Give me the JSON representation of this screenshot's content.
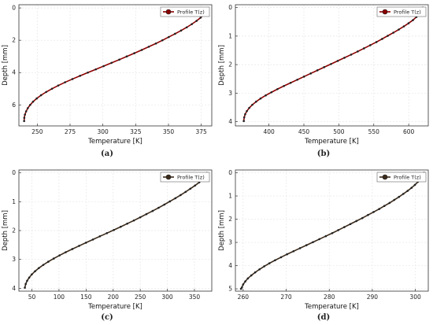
{
  "chart_data": [
    {
      "type": "line",
      "caption": "(a)",
      "xlabel": "Temperature [K]",
      "ylabel": "Depth [mm]",
      "xticks": [
        250,
        275,
        300,
        325,
        350,
        375
      ],
      "yticks": [
        0,
        2,
        4,
        6
      ],
      "xlim": [
        236,
        383
      ],
      "ylim": [
        -0.2,
        7.3
      ],
      "y_inverted": true,
      "grid": true,
      "legend_position": "top-right",
      "series": [
        {
          "name": "Profile T(z)",
          "color": "#8b0000",
          "x": [
            380.0,
            378.6,
            377.0,
            374.5,
            371.4,
            367.8,
            363.9,
            359.6,
            355.0,
            350.2,
            345.4,
            340.4,
            335.0,
            329.6,
            324.0,
            318.2,
            312.5,
            306.6,
            300.6,
            294.6,
            288.5,
            282.6,
            276.8,
            271.2,
            266.0,
            261.2,
            256.8,
            252.9,
            249.6,
            246.8,
            244.6,
            242.8,
            241.5,
            240.6,
            240.1,
            240.0
          ],
          "y": [
            0.0,
            0.2,
            0.4,
            0.6,
            0.8,
            1.0,
            1.2,
            1.4,
            1.6,
            1.8,
            2.0,
            2.2,
            2.4,
            2.6,
            2.8,
            3.0,
            3.2,
            3.4,
            3.6,
            3.8,
            4.0,
            4.2,
            4.4,
            4.6,
            4.8,
            5.0,
            5.2,
            5.4,
            5.6,
            5.8,
            6.0,
            6.2,
            6.4,
            6.6,
            6.8,
            7.0
          ]
        }
      ]
    },
    {
      "type": "line",
      "caption": "(b)",
      "xlabel": "Temperature [K]",
      "ylabel": "Depth [mm]",
      "xticks": [
        400,
        450,
        500,
        550,
        600
      ],
      "yticks": [
        0,
        1,
        2,
        3,
        4
      ],
      "xlim": [
        352,
        628
      ],
      "ylim": [
        -0.1,
        4.15
      ],
      "y_inverted": true,
      "grid": true,
      "legend_position": "top-right",
      "series": [
        {
          "name": "Profile T(z)",
          "color": "#8b0000",
          "x": [
            620.0,
            618.2,
            615.6,
            611.0,
            606.0,
            599.8,
            593.0,
            585.8,
            578.0,
            570.0,
            562.0,
            553.8,
            545.0,
            536.0,
            527.0,
            517.6,
            508.0,
            498.4,
            488.8,
            479.0,
            469.4,
            459.8,
            450.2,
            440.6,
            431.0,
            421.4,
            412.2,
            403.6,
            395.4,
            388.0,
            381.6,
            376.2,
            371.8,
            368.4,
            366.0,
            364.6,
            364.0
          ],
          "y": [
            0.0,
            0.11,
            0.22,
            0.33,
            0.44,
            0.55,
            0.66,
            0.77,
            0.88,
            0.99,
            1.1,
            1.21,
            1.32,
            1.43,
            1.54,
            1.65,
            1.76,
            1.87,
            1.98,
            2.09,
            2.2,
            2.31,
            2.42,
            2.53,
            2.64,
            2.75,
            2.86,
            2.97,
            3.08,
            3.19,
            3.3,
            3.41,
            3.52,
            3.63,
            3.74,
            3.85,
            3.98
          ]
        }
      ]
    },
    {
      "type": "line",
      "caption": "(c)",
      "xlabel": "Temperature [K]",
      "ylabel": "Depth [mm]",
      "xticks": [
        50,
        100,
        150,
        200,
        250,
        300,
        350
      ],
      "yticks": [
        0,
        1,
        2,
        3,
        4
      ],
      "xlim": [
        26,
        382
      ],
      "ylim": [
        -0.1,
        4.1
      ],
      "y_inverted": true,
      "grid": true,
      "legend_position": "top-right",
      "series": [
        {
          "name": "Profile T(z)",
          "color": "#3b2a1a",
          "x": [
            373.0,
            369.2,
            365.0,
            358.8,
            351.0,
            342.4,
            333.6,
            324.4,
            314.8,
            304.6,
            294.4,
            283.8,
            272.8,
            261.4,
            250.0,
            238.2,
            226.0,
            213.8,
            201.2,
            188.4,
            175.4,
            162.6,
            149.8,
            137.2,
            124.6,
            112.4,
            101.0,
            90.2,
            80.2,
            71.0,
            62.8,
            55.8,
            49.8,
            45.0,
            41.2,
            38.6,
            37.0
          ],
          "y": [
            0.0,
            0.11,
            0.22,
            0.33,
            0.44,
            0.55,
            0.66,
            0.77,
            0.88,
            0.99,
            1.1,
            1.21,
            1.32,
            1.43,
            1.54,
            1.65,
            1.76,
            1.87,
            1.98,
            2.09,
            2.2,
            2.31,
            2.42,
            2.53,
            2.64,
            2.75,
            2.86,
            2.97,
            3.08,
            3.19,
            3.3,
            3.41,
            3.52,
            3.63,
            3.74,
            3.85,
            3.98
          ]
        }
      ]
    },
    {
      "type": "line",
      "caption": "(d)",
      "xlabel": "Temperature [K]",
      "ylabel": "Depth [mm]",
      "xticks": [
        260,
        270,
        280,
        290,
        300
      ],
      "yticks": [
        0,
        1,
        2,
        3,
        4,
        5
      ],
      "xlim": [
        258.2,
        303.0
      ],
      "ylim": [
        -0.12,
        5.1
      ],
      "y_inverted": true,
      "grid": true,
      "legend_position": "top-right",
      "series": [
        {
          "name": "Profile T(z)",
          "color": "#3b2a1a",
          "x": [
            302.0,
            301.7,
            301.2,
            300.6,
            299.9,
            299.1,
            298.2,
            297.2,
            296.2,
            295.1,
            294.0,
            292.8,
            291.6,
            290.3,
            289.0,
            287.7,
            286.3,
            284.9,
            283.5,
            282.1,
            280.7,
            279.2,
            277.7,
            276.2,
            274.7,
            273.2,
            271.7,
            270.2,
            268.8,
            267.4,
            266.1,
            264.9,
            263.8,
            262.8,
            261.9,
            261.1,
            260.5,
            260.0,
            259.7,
            259.5
          ],
          "y": [
            0.0,
            0.13,
            0.26,
            0.39,
            0.52,
            0.65,
            0.78,
            0.91,
            1.04,
            1.17,
            1.3,
            1.43,
            1.56,
            1.69,
            1.82,
            1.95,
            2.08,
            2.21,
            2.34,
            2.47,
            2.6,
            2.73,
            2.86,
            2.99,
            3.12,
            3.25,
            3.38,
            3.51,
            3.64,
            3.77,
            3.9,
            4.03,
            4.16,
            4.29,
            4.42,
            4.55,
            4.68,
            4.81,
            4.94,
            5.0
          ]
        }
      ]
    }
  ]
}
